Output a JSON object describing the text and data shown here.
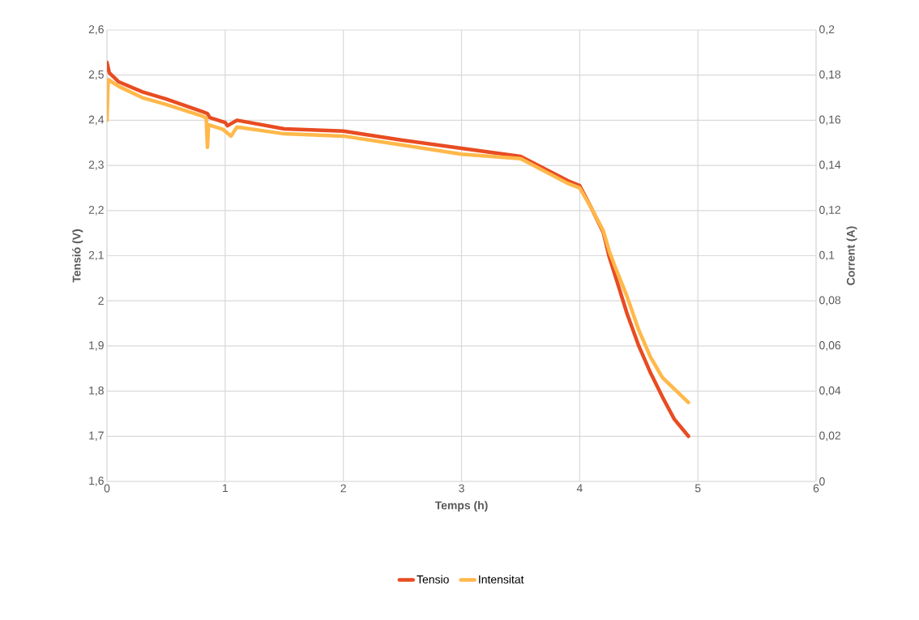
{
  "chart_data": {
    "type": "line",
    "xlabel": "Temps (h)",
    "ylabel": "Tensió (V)",
    "y2label": "Corrent (A)",
    "xlim": [
      0,
      6
    ],
    "xticks": [
      0,
      1,
      2,
      3,
      4,
      5,
      6
    ],
    "ylim": [
      1.6,
      2.6
    ],
    "yticks": [
      {
        "value": 1.6,
        "label": "1,6"
      },
      {
        "value": 1.7,
        "label": "1,7"
      },
      {
        "value": 1.8,
        "label": "1,8"
      },
      {
        "value": 1.9,
        "label": "1,9"
      },
      {
        "value": 2.0,
        "label": "2"
      },
      {
        "value": 2.1,
        "label": "2,1"
      },
      {
        "value": 2.2,
        "label": "2,2"
      },
      {
        "value": 2.3,
        "label": "2,3"
      },
      {
        "value": 2.4,
        "label": "2,4"
      },
      {
        "value": 2.5,
        "label": "2,5"
      },
      {
        "value": 2.6,
        "label": "2,6"
      }
    ],
    "y2lim": [
      0,
      0.2
    ],
    "y2ticks": [
      0,
      {
        "value": 0.02,
        "label": "0,02"
      },
      {
        "value": 0.04,
        "label": "0,04"
      },
      {
        "value": 0.06,
        "label": "0,06"
      },
      {
        "value": 0.08,
        "label": "0,08"
      },
      {
        "value": 0.1,
        "label": "0,1"
      },
      {
        "value": 0.12,
        "label": "0,12"
      },
      {
        "value": 0.14,
        "label": "0,14"
      },
      {
        "value": 0.16,
        "label": "0,16"
      },
      {
        "value": 0.18,
        "label": "0,18"
      },
      {
        "value": 0.2,
        "label": "0,2"
      }
    ],
    "grid": true,
    "legend": "bottom",
    "line_style": "solid",
    "marker": "none",
    "series": [
      {
        "name": "Tensio",
        "color": "#e84c22",
        "x": [
          0,
          0.02,
          0.1,
          0.3,
          0.5,
          0.8,
          0.85,
          0.87,
          1.0,
          1.02,
          1.1,
          1.5,
          2.0,
          2.5,
          3.0,
          3.5,
          3.9,
          4.0,
          4.1,
          4.2,
          4.25,
          4.3,
          4.4,
          4.5,
          4.6,
          4.7,
          4.8,
          4.92
        ],
        "values": [
          2.528,
          2.505,
          2.485,
          2.463,
          2.447,
          2.42,
          2.415,
          2.406,
          2.395,
          2.388,
          2.4,
          2.381,
          2.376,
          2.356,
          2.338,
          2.32,
          2.266,
          2.255,
          2.205,
          2.151,
          2.097,
          2.056,
          1.972,
          1.9,
          1.84,
          1.787,
          1.738,
          1.7
        ]
      },
      {
        "name": "Intensitat",
        "color": "#ffb84a",
        "axis": "y2",
        "x": [
          0,
          0.01,
          0.1,
          0.3,
          0.5,
          0.8,
          0.84,
          0.85,
          0.86,
          0.98,
          1.05,
          1.1,
          1.5,
          2.0,
          2.5,
          3.0,
          3.5,
          3.9,
          4.0,
          4.1,
          4.2,
          4.25,
          4.3,
          4.4,
          4.5,
          4.6,
          4.7,
          4.8,
          4.92
        ],
        "values": [
          0.16,
          0.178,
          0.175,
          0.17,
          0.167,
          0.162,
          0.161,
          0.148,
          0.158,
          0.156,
          0.153,
          0.157,
          0.154,
          0.153,
          0.149,
          0.145,
          0.143,
          0.132,
          0.13,
          0.121,
          0.111,
          0.102,
          0.095,
          0.082,
          0.067,
          0.055,
          0.046,
          0.041,
          0.035
        ]
      }
    ]
  }
}
